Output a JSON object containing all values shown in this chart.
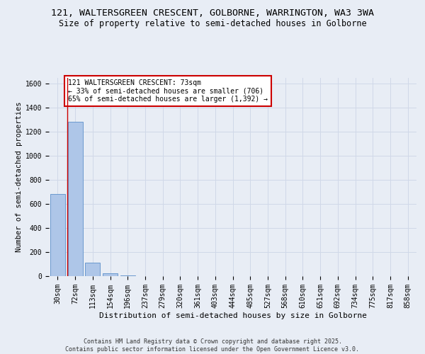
{
  "title_line1": "121, WALTERSGREEN CRESCENT, GOLBORNE, WARRINGTON, WA3 3WA",
  "title_line2": "Size of property relative to semi-detached houses in Golborne",
  "xlabel": "Distribution of semi-detached houses by size in Golborne",
  "ylabel": "Number of semi-detached properties",
  "categories": [
    "30sqm",
    "72sqm",
    "113sqm",
    "154sqm",
    "196sqm",
    "237sqm",
    "279sqm",
    "320sqm",
    "361sqm",
    "403sqm",
    "444sqm",
    "485sqm",
    "527sqm",
    "568sqm",
    "610sqm",
    "651sqm",
    "692sqm",
    "734sqm",
    "775sqm",
    "817sqm",
    "858sqm"
  ],
  "values": [
    681,
    1283,
    110,
    25,
    5,
    0,
    0,
    0,
    0,
    0,
    0,
    0,
    0,
    0,
    0,
    0,
    0,
    0,
    0,
    0,
    0
  ],
  "highlight_index": 1,
  "bar_color": "#aec6e8",
  "bar_edge_color": "#5b8fc9",
  "annotation_text": "121 WALTERSGREEN CRESCENT: 73sqm\n← 33% of semi-detached houses are smaller (706)\n65% of semi-detached houses are larger (1,392) →",
  "annotation_box_color": "#ffffff",
  "annotation_box_edge_color": "#cc0000",
  "ylim": [
    0,
    1650
  ],
  "yticks": [
    0,
    200,
    400,
    600,
    800,
    1000,
    1200,
    1400,
    1600
  ],
  "grid_color": "#d0d8e8",
  "background_color": "#e8edf5",
  "footer_text": "Contains HM Land Registry data © Crown copyright and database right 2025.\nContains public sector information licensed under the Open Government Licence v3.0.",
  "title_fontsize": 9.5,
  "subtitle_fontsize": 8.5,
  "ylabel_fontsize": 7.5,
  "xlabel_fontsize": 8,
  "tick_fontsize": 7,
  "annotation_fontsize": 7,
  "footer_fontsize": 6
}
